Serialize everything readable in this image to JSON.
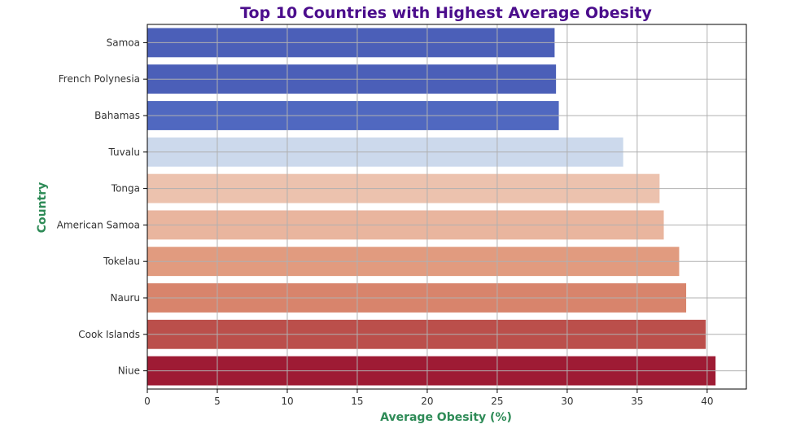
{
  "chart_data": {
    "type": "bar",
    "orientation": "horizontal",
    "title": "Top 10 Countries with Highest Average Obesity",
    "xlabel": "Average Obesity (%)",
    "ylabel": "Country",
    "xlim": [
      0,
      42.8
    ],
    "xticks": [
      0,
      5,
      10,
      15,
      20,
      25,
      30,
      35,
      40
    ],
    "grid": true,
    "categories": [
      "Samoa",
      "French Polynesia",
      "Bahamas",
      "Tuvalu",
      "Tonga",
      "American Samoa",
      "Tokelau",
      "Nauru",
      "Cook Islands",
      "Niue"
    ],
    "values": [
      29.1,
      29.2,
      29.4,
      34.0,
      36.6,
      36.9,
      38.0,
      38.5,
      39.9,
      40.6
    ],
    "colors": [
      "#4b5fb8",
      "#4b5fb8",
      "#5068c0",
      "#ccd9ec",
      "#ecc2ae",
      "#e9b59e",
      "#e19b7f",
      "#d8846c",
      "#bb4f4b",
      "#9e1b34"
    ],
    "title_color": "#4b0d8c",
    "axis_label_color": "#2e8b57"
  }
}
